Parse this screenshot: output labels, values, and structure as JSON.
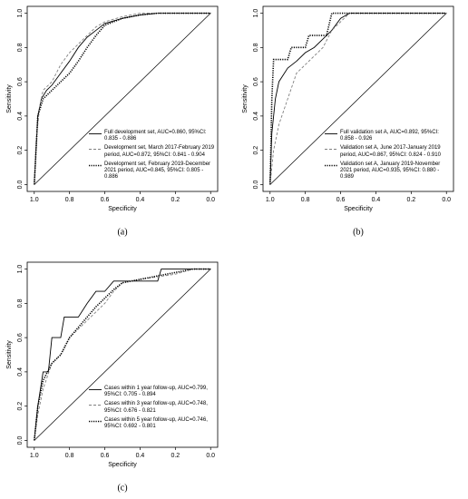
{
  "chart_data": [
    {
      "type": "line",
      "panel_label": "(a)",
      "xlabel": "Specificity",
      "ylabel": "Sensitivity",
      "xlim": [
        1.04,
        -0.04
      ],
      "ylim": [
        -0.04,
        1.04
      ],
      "xticks": [
        {
          "value": 1,
          "label": "1.0"
        },
        {
          "value": 0.8,
          "label": "0.8"
        },
        {
          "value": 0.6,
          "label": "0.6"
        },
        {
          "value": 0.4,
          "label": "0.4"
        },
        {
          "value": 0.2,
          "label": "0.2"
        },
        {
          "value": 0,
          "label": "0.0"
        }
      ],
      "yticks": [
        {
          "value": 0,
          "label": "0.0"
        },
        {
          "value": 0.2,
          "label": "0.2"
        },
        {
          "value": 0.4,
          "label": "0.4"
        },
        {
          "value": 0.6,
          "label": "0.6"
        },
        {
          "value": 0.8,
          "label": "0.8"
        },
        {
          "value": 1,
          "label": "1.0"
        }
      ],
      "legend": "bottom-right",
      "series": [
        {
          "name": "Full development set, AUC=0.860, 95%CI: 0.835 - 0.886",
          "color": "#000000",
          "linestyle": "solid",
          "x": [
            1,
            0.99,
            0.98,
            0.96,
            0.93,
            0.9,
            0.85,
            0.8,
            0.75,
            0.7,
            0.65,
            0.6,
            0.5,
            0.4,
            0.3,
            0
          ],
          "values": [
            0,
            0.2,
            0.4,
            0.5,
            0.55,
            0.58,
            0.65,
            0.72,
            0.8,
            0.86,
            0.9,
            0.94,
            0.97,
            0.99,
            1,
            1
          ]
        },
        {
          "name": "Development set, March 2017-February 2019 period, AUC=0.872, 95%CI: 0.841 - 0.904",
          "color": "#808080",
          "linestyle": "dashed",
          "x": [
            1,
            0.99,
            0.97,
            0.95,
            0.9,
            0.85,
            0.8,
            0.75,
            0.7,
            0.65,
            0.6,
            0.5,
            0.4,
            0
          ],
          "values": [
            0,
            0.25,
            0.45,
            0.55,
            0.6,
            0.7,
            0.77,
            0.82,
            0.87,
            0.92,
            0.95,
            0.98,
            1,
            1
          ]
        },
        {
          "name": "Development set, February 2019-December 2021 period, AUC=0.845, 95%CI: 0.805 - 0.886",
          "color": "#000000",
          "linestyle": "dotted",
          "x": [
            1,
            0.99,
            0.98,
            0.95,
            0.9,
            0.85,
            0.8,
            0.75,
            0.7,
            0.65,
            0.6,
            0.5,
            0.4,
            0.3,
            0
          ],
          "values": [
            0,
            0.2,
            0.4,
            0.5,
            0.55,
            0.6,
            0.65,
            0.72,
            0.8,
            0.87,
            0.93,
            0.97,
            0.99,
            1,
            1
          ]
        }
      ]
    },
    {
      "type": "line",
      "panel_label": "(b)",
      "xlabel": "Specificity",
      "ylabel": "Sensitivity",
      "xlim": [
        1.04,
        -0.04
      ],
      "ylim": [
        -0.04,
        1.04
      ],
      "xticks": [
        {
          "value": 1,
          "label": "1.0"
        },
        {
          "value": 0.8,
          "label": "0.8"
        },
        {
          "value": 0.6,
          "label": "0.6"
        },
        {
          "value": 0.4,
          "label": "0.4"
        },
        {
          "value": 0.2,
          "label": "0.2"
        },
        {
          "value": 0,
          "label": "0.0"
        }
      ],
      "yticks": [
        {
          "value": 0,
          "label": "0.0"
        },
        {
          "value": 0.2,
          "label": "0.2"
        },
        {
          "value": 0.4,
          "label": "0.4"
        },
        {
          "value": 0.6,
          "label": "0.6"
        },
        {
          "value": 0.8,
          "label": "0.8"
        },
        {
          "value": 1,
          "label": "1.0"
        }
      ],
      "legend": "bottom-right",
      "series": [
        {
          "name": "Full validation set A, AUC=0.892, 95%CI: 0.858 - 0.926",
          "color": "#000000",
          "linestyle": "solid",
          "x": [
            1,
            0.99,
            0.97,
            0.95,
            0.9,
            0.85,
            0.8,
            0.75,
            0.7,
            0.65,
            0.6,
            0.55,
            0
          ],
          "values": [
            0,
            0.3,
            0.5,
            0.6,
            0.68,
            0.72,
            0.77,
            0.8,
            0.85,
            0.9,
            0.97,
            1,
            1
          ]
        },
        {
          "name": "Validation set A, June 2017-January 2019 period, AUC=0.867, 95%CI: 0.824 - 0.910",
          "color": "#808080",
          "linestyle": "dashed",
          "x": [
            1,
            0.98,
            0.95,
            0.9,
            0.85,
            0.8,
            0.75,
            0.7,
            0.65,
            0.6,
            0.55,
            0
          ],
          "values": [
            0,
            0.2,
            0.35,
            0.5,
            0.65,
            0.7,
            0.75,
            0.8,
            0.9,
            0.95,
            1,
            1
          ]
        },
        {
          "name": "Validation set A, January 2019-November 2021 period, AUC=0.935, 95%CI: 0.880 - 0.989",
          "color": "#000000",
          "linestyle": "dotted",
          "x": [
            1,
            0.99,
            0.98,
            0.9,
            0.88,
            0.8,
            0.78,
            0.68,
            0.65,
            0
          ],
          "values": [
            0,
            0.5,
            0.73,
            0.73,
            0.8,
            0.8,
            0.87,
            0.87,
            1,
            1
          ]
        }
      ]
    },
    {
      "type": "line",
      "panel_label": "(c)",
      "xlabel": "Specificity",
      "ylabel": "Sensitivity",
      "xlim": [
        1.04,
        -0.04
      ],
      "ylim": [
        -0.04,
        1.04
      ],
      "xticks": [
        {
          "value": 1,
          "label": "1.0"
        },
        {
          "value": 0.8,
          "label": "0.8"
        },
        {
          "value": 0.6,
          "label": "0.6"
        },
        {
          "value": 0.4,
          "label": "0.4"
        },
        {
          "value": 0.2,
          "label": "0.2"
        },
        {
          "value": 0,
          "label": "0.0"
        }
      ],
      "yticks": [
        {
          "value": 0,
          "label": "0.0"
        },
        {
          "value": 0.2,
          "label": "0.2"
        },
        {
          "value": 0.4,
          "label": "0.4"
        },
        {
          "value": 0.6,
          "label": "0.6"
        },
        {
          "value": 0.8,
          "label": "0.8"
        },
        {
          "value": 1,
          "label": "1.0"
        }
      ],
      "legend": "bottom-right",
      "series": [
        {
          "name": "Cases within 1 year follow-up, AUC=0.799, 95%CI: 0.705 - 0.894",
          "color": "#000000",
          "linestyle": "solid",
          "x": [
            1,
            0.98,
            0.95,
            0.92,
            0.9,
            0.85,
            0.83,
            0.75,
            0.7,
            0.65,
            0.6,
            0.55,
            0.3,
            0.28,
            0
          ],
          "values": [
            0,
            0.2,
            0.4,
            0.4,
            0.6,
            0.6,
            0.72,
            0.72,
            0.8,
            0.87,
            0.87,
            0.93,
            0.93,
            1,
            1
          ]
        },
        {
          "name": "Cases within 3 year follow-up, AUC=0.748, 95%CI: 0.676 - 0.821",
          "color": "#808080",
          "linestyle": "dashed",
          "x": [
            1,
            0.98,
            0.95,
            0.9,
            0.85,
            0.8,
            0.75,
            0.7,
            0.65,
            0.6,
            0.55,
            0.5,
            0.4,
            0.2,
            0.1,
            0
          ],
          "values": [
            0,
            0.15,
            0.3,
            0.45,
            0.5,
            0.6,
            0.65,
            0.7,
            0.75,
            0.8,
            0.87,
            0.92,
            0.94,
            0.97,
            1,
            1
          ]
        },
        {
          "name": "Cases within 5 year follow-up, AUC=0.746, 95%CI: 0.692 - 0.801",
          "color": "#000000",
          "linestyle": "dotted",
          "x": [
            1,
            0.98,
            0.95,
            0.9,
            0.85,
            0.8,
            0.75,
            0.7,
            0.65,
            0.6,
            0.55,
            0.5,
            0.4,
            0.2,
            0.1,
            0
          ],
          "values": [
            0,
            0.2,
            0.35,
            0.45,
            0.5,
            0.6,
            0.66,
            0.72,
            0.78,
            0.83,
            0.88,
            0.92,
            0.94,
            0.98,
            1,
            1
          ]
        }
      ]
    }
  ]
}
